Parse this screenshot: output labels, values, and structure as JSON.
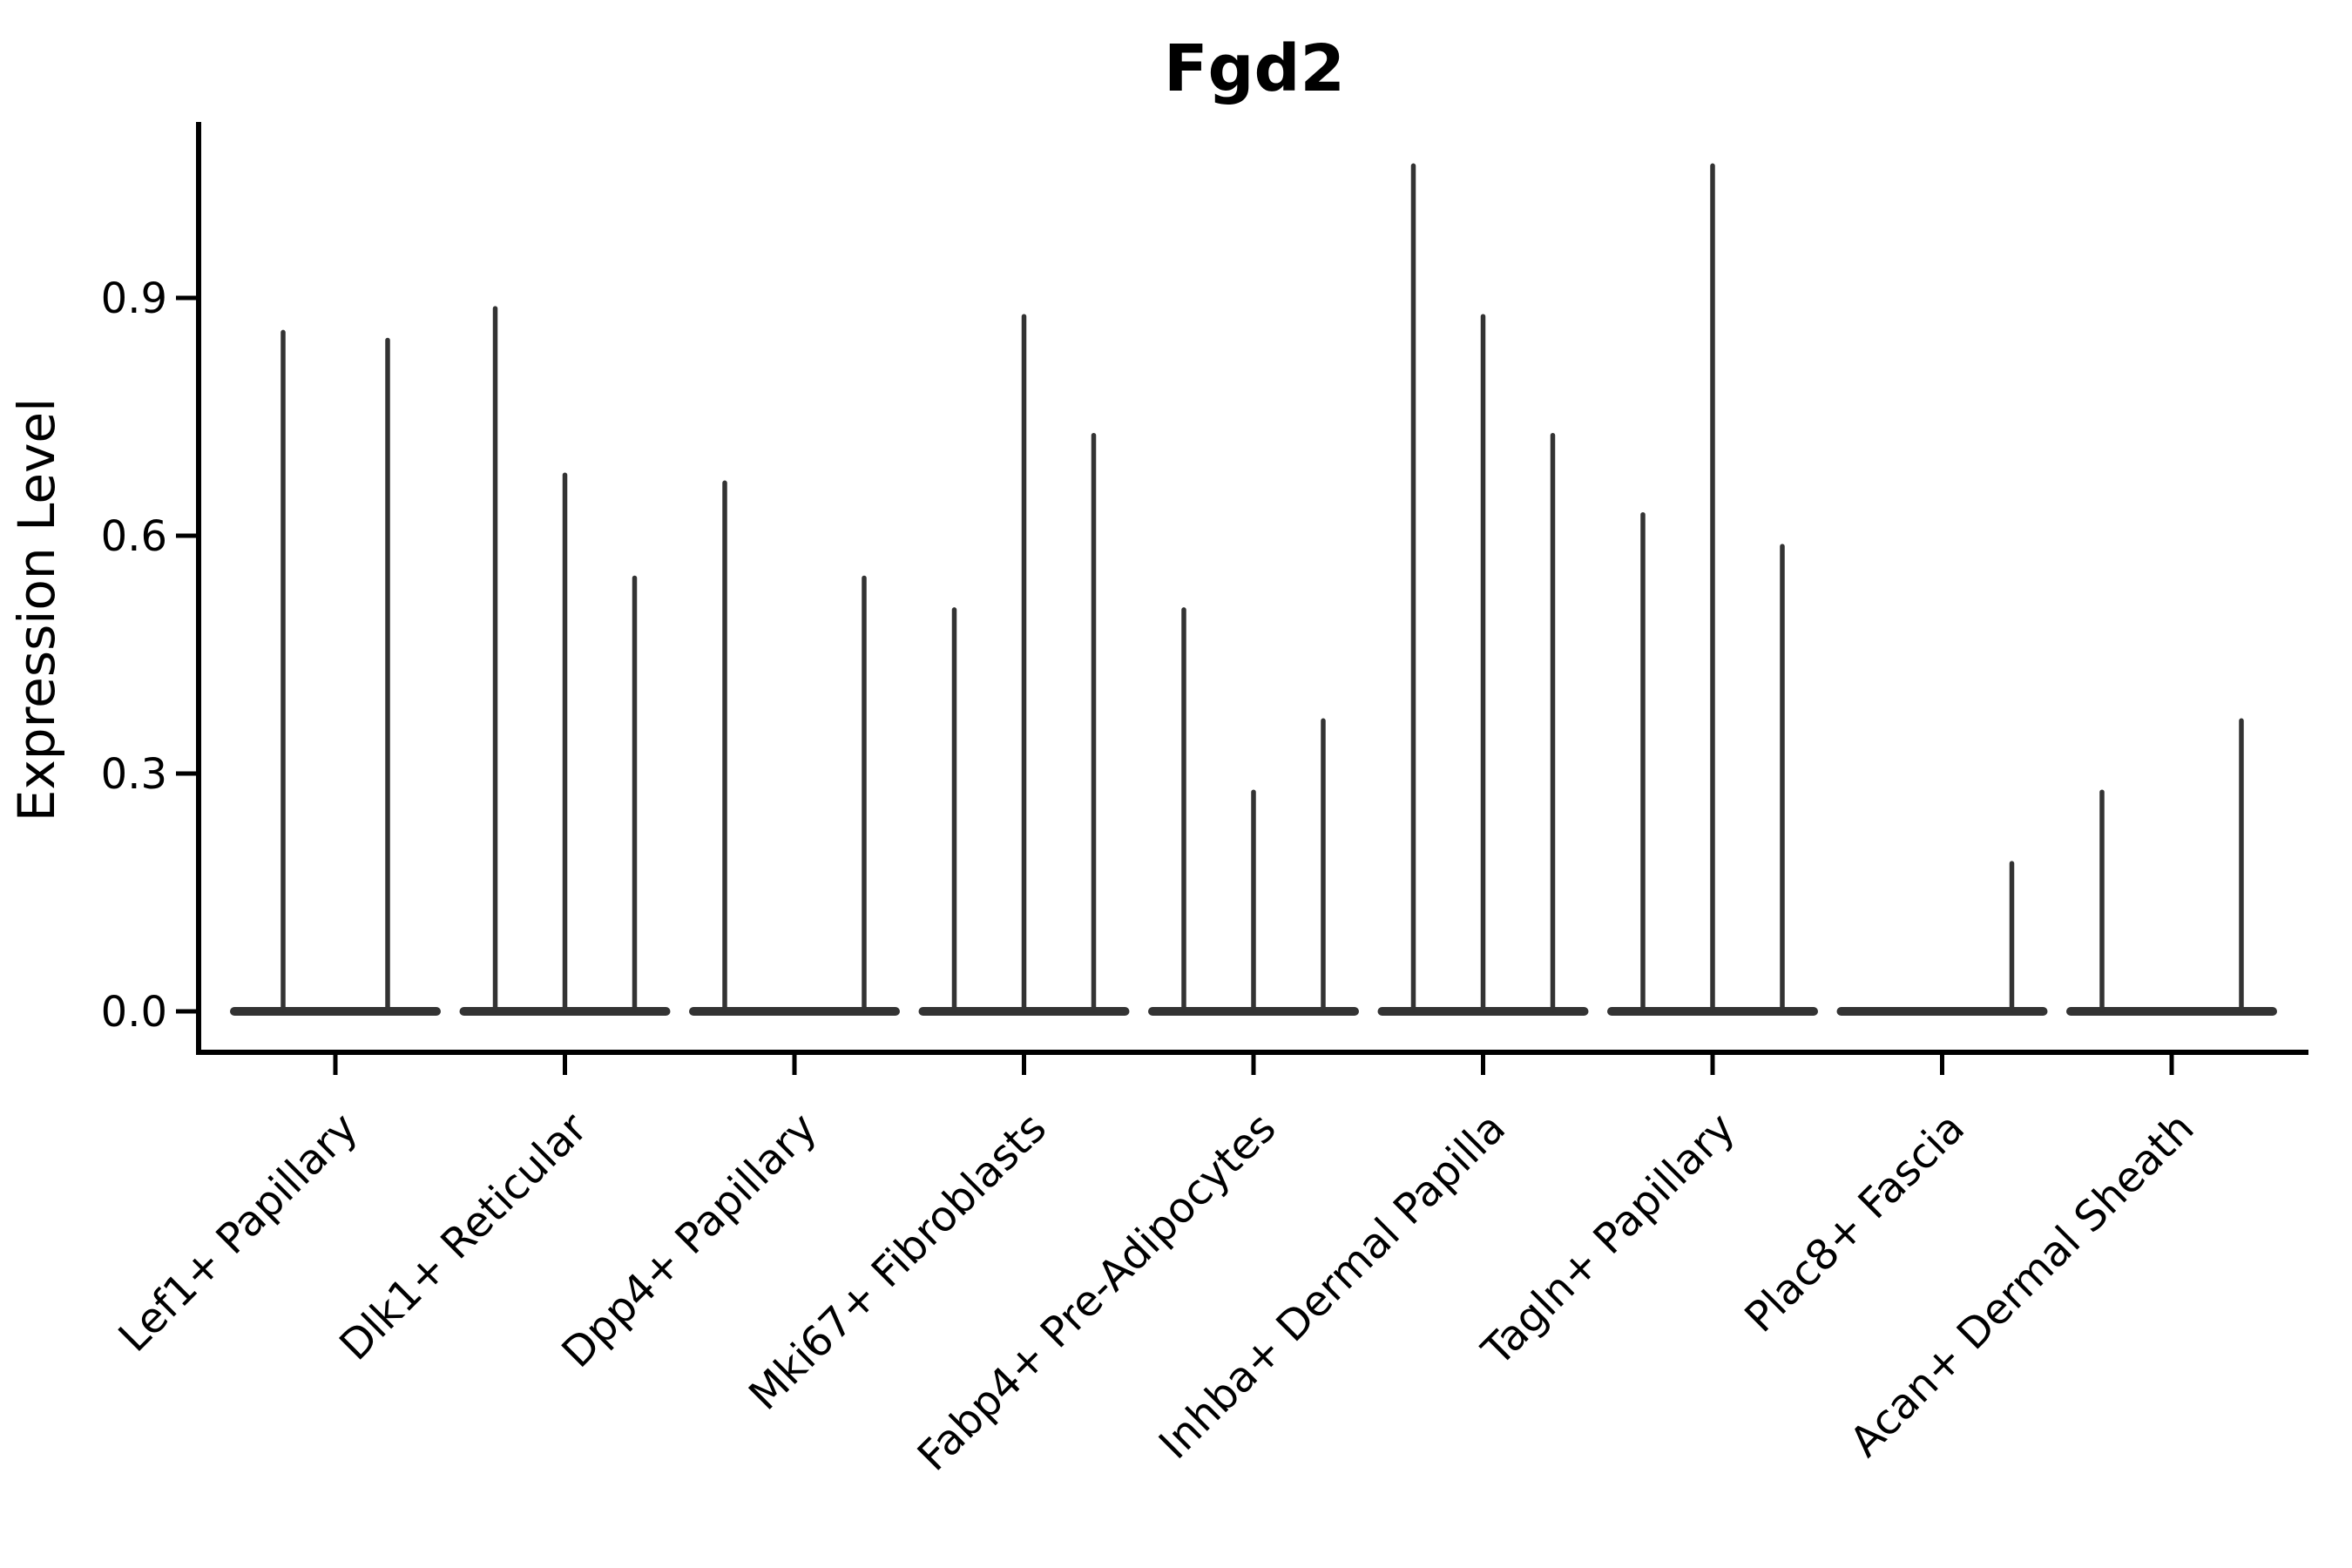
{
  "title": "Fgd2",
  "y_axis": {
    "label": "Expression Level",
    "tick_labels": [
      "0.0",
      "0.3",
      "0.6",
      "0.9"
    ],
    "tick_values": [
      0.0,
      0.3,
      0.6,
      0.9
    ]
  },
  "x_axis": {
    "categories": [
      "Lef1+ Papillary",
      "Dlk1+ Reticular",
      "Dpp4+ Papillary",
      "Mki67+ Fibroblasts",
      "Fabp4+ Pre-Adipocytes",
      "Inhba+ Dermal Papilla",
      "Tagln+ Papillary",
      "Plac8+ Fascia",
      "Acan+ Dermal Sheath"
    ]
  },
  "colors": {
    "violin": "#333333",
    "axis": "#000000",
    "text": "#000000",
    "background": "#ffffff"
  },
  "chart_data": {
    "type": "violin",
    "title": "Fgd2",
    "xlabel": "",
    "ylabel": "Expression Level",
    "ylim": [
      -0.05,
      1.12
    ],
    "yticks": [
      0.0,
      0.3,
      0.6,
      0.9
    ],
    "grid": false,
    "legend_position": "none",
    "description": "Dodged violin plot; each sub-violin is flat at 0 with a thin density spike reaching the group's maximum expression value.",
    "categories": [
      "Lef1+ Papillary",
      "Dlk1+ Reticular",
      "Dpp4+ Papillary",
      "Mki67+ Fibroblasts",
      "Fabp4+ Pre-Adipocytes",
      "Inhba+ Dermal Papilla",
      "Tagln+ Papillary",
      "Plac8+ Fascia",
      "Acan+ Dermal Sheath"
    ],
    "groups": [
      {
        "category": "Lef1+ Papillary",
        "violins": [
          {
            "dx": -60,
            "max": 0.86
          },
          {
            "dx": 60,
            "max": 0.85
          }
        ]
      },
      {
        "category": "Dlk1+ Reticular",
        "violins": [
          {
            "dx": -80,
            "max": 0.89
          },
          {
            "dx": 0,
            "max": 0.68
          },
          {
            "dx": 80,
            "max": 0.55
          }
        ]
      },
      {
        "category": "Dpp4+ Papillary",
        "violins": [
          {
            "dx": -80,
            "max": 0.67
          },
          {
            "dx": 0,
            "max": 0.0
          },
          {
            "dx": 80,
            "max": 0.55
          }
        ]
      },
      {
        "category": "Mki67+ Fibroblasts",
        "violins": [
          {
            "dx": -80,
            "max": 0.51
          },
          {
            "dx": 0,
            "max": 0.88
          },
          {
            "dx": 80,
            "max": 0.73
          }
        ]
      },
      {
        "category": "Fabp4+ Pre-Adipocytes",
        "violins": [
          {
            "dx": -80,
            "max": 0.51
          },
          {
            "dx": 0,
            "max": 0.28
          },
          {
            "dx": 80,
            "max": 0.37
          }
        ]
      },
      {
        "category": "Inhba+ Dermal Papilla",
        "violins": [
          {
            "dx": -80,
            "max": 1.07
          },
          {
            "dx": 0,
            "max": 0.88
          },
          {
            "dx": 80,
            "max": 0.73
          }
        ]
      },
      {
        "category": "Tagln+ Papillary",
        "violins": [
          {
            "dx": -80,
            "max": 0.63
          },
          {
            "dx": 0,
            "max": 1.07
          },
          {
            "dx": 80,
            "max": 0.59
          }
        ]
      },
      {
        "category": "Plac8+ Fascia",
        "violins": [
          {
            "dx": -80,
            "max": 0.0
          },
          {
            "dx": 0,
            "max": 0.0
          },
          {
            "dx": 80,
            "max": 0.19
          }
        ]
      },
      {
        "category": "Acan+ Dermal Sheath",
        "violins": [
          {
            "dx": -80,
            "max": 0.28
          },
          {
            "dx": 0,
            "max": 0.0
          },
          {
            "dx": 80,
            "max": 0.37
          }
        ]
      }
    ]
  }
}
